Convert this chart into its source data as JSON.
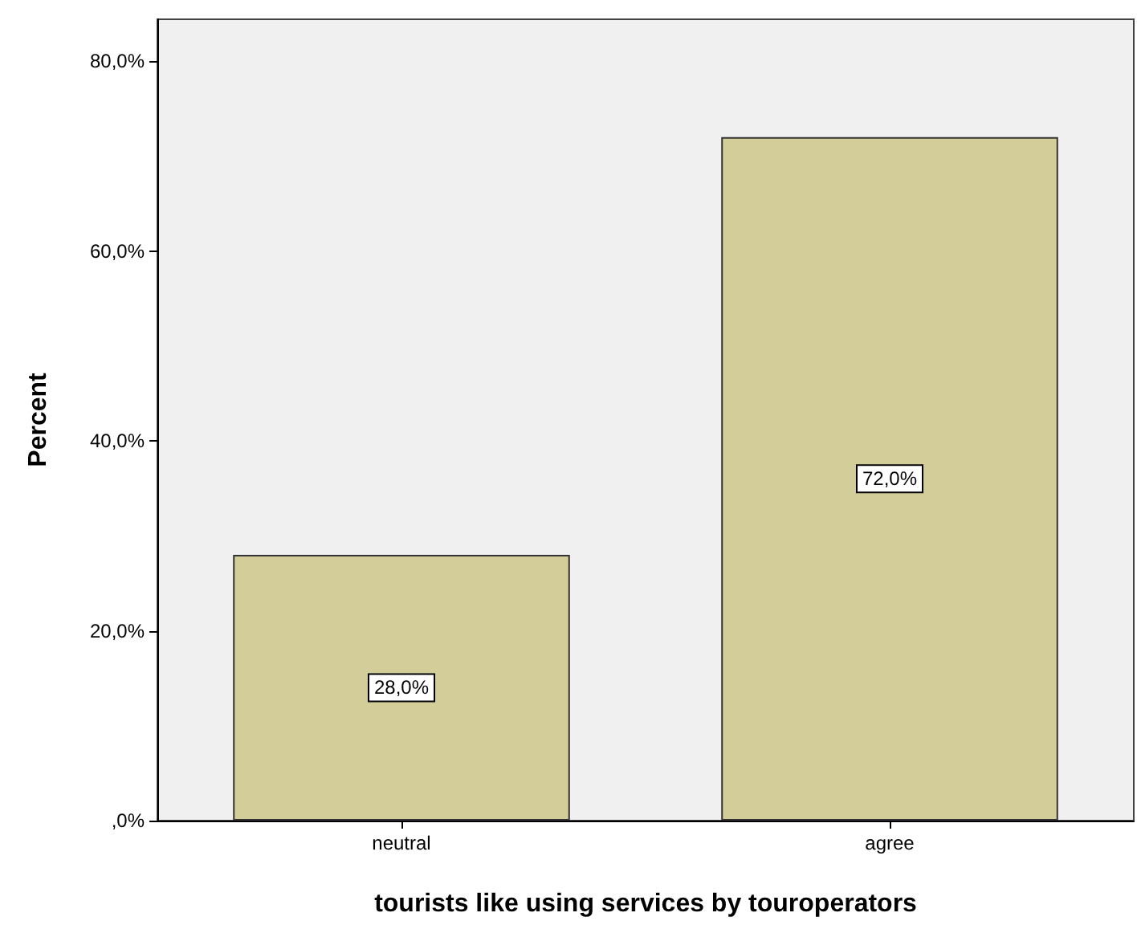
{
  "chart_data": {
    "type": "bar",
    "xlabel": "tourists like using services by touroperators",
    "ylabel": "Percent",
    "categories": [
      "neutral",
      "agree"
    ],
    "series": [
      {
        "color": "#d3ce99",
        "values": [
          28,
          72
        ],
        "value_labels": [
          "28,0%",
          "72,0%"
        ]
      }
    ],
    "ylim": [
      0,
      84.4
    ],
    "yticks": [
      {
        "value": 0,
        "label": ",0%"
      },
      {
        "value": 20,
        "label": "20,0%"
      },
      {
        "value": 40,
        "label": "40,0%"
      },
      {
        "value": 60,
        "label": "60,0%"
      },
      {
        "value": 80,
        "label": "80,0%"
      }
    ],
    "grid": false
  }
}
